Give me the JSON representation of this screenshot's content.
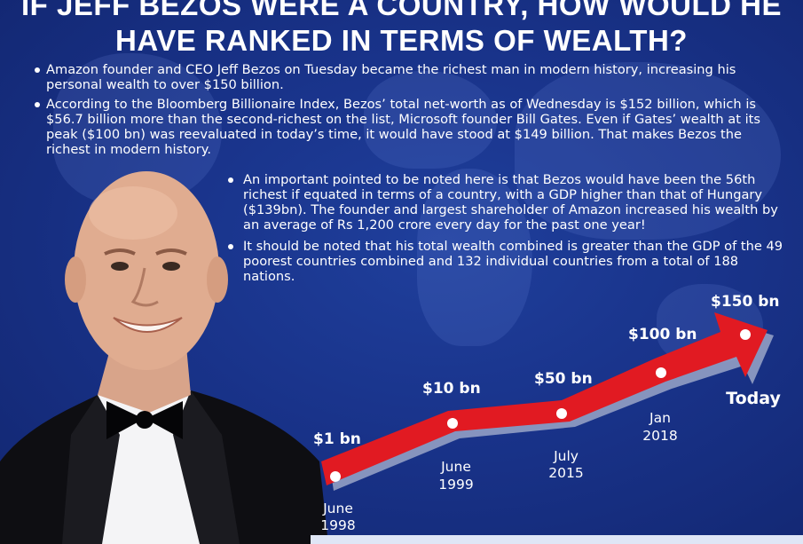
{
  "title": {
    "line1": "IF JEFF BEZOS WERE A COUNTRY, HOW WOULD HE",
    "line2": "HAVE RANKED IN TERMS OF WEALTH?"
  },
  "bullets_top": [
    "Amazon founder and CEO Jeff Bezos on Tuesday became the richest man in modern history, increasing his personal wealth to over $150 billion.",
    "According to the Bloomberg Billionaire Index, Bezos’ total net-worth as of Wednesday is $152 billion, which is $56.7 billion more than the second-richest on the list, Microsoft founder Bill Gates. Even if Gates’ wealth at its peak ($100 bn) was reevaluated in today’s time, it would have stood at $149 billion. That makes Bezos the richest in modern history."
  ],
  "bullets_right": [
    "An important pointed to be noted here is that Bezos would have been the 56th richest if equated in terms of a country, with a GDP higher than that of Hungary ($139bn). The founder and largest shareholder of Amazon increased his wealth by an average of Rs 1,200 crore every day for the past one year!",
    "It should be noted that his total wealth combined is greater than the GDP of the 49 poorest countries combined and 132 individual countries from a total of 188 nations."
  ],
  "timeline": {
    "points": [
      {
        "value_label": "$1 bn",
        "date_line1": "June",
        "date_line2": "1998"
      },
      {
        "value_label": "$10 bn",
        "date_line1": "June",
        "date_line2": "1999"
      },
      {
        "value_label": "$50 bn",
        "date_line1": "July",
        "date_line2": "2015"
      },
      {
        "value_label": "$100 bn",
        "date_line1": "Jan",
        "date_line2": "2018"
      },
      {
        "value_label": "$150 bn",
        "date_line1": "Today",
        "date_line2": ""
      }
    ],
    "arrow_color": "#e11a22",
    "arrow_shadow_color": "#9aa6c8"
  }
}
